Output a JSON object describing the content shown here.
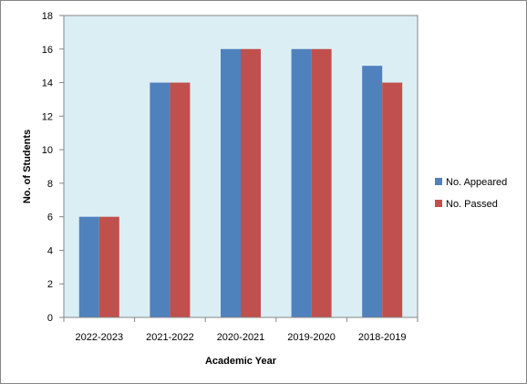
{
  "chart_data": {
    "type": "bar",
    "categories": [
      "2022-2023",
      "2021-2022",
      "2020-2021",
      "2019-2020",
      "2018-2019"
    ],
    "series": [
      {
        "name": "No. Appeared",
        "values": [
          6,
          14,
          16,
          16,
          15
        ],
        "color": "#4f81bd"
      },
      {
        "name": "No. Passed",
        "values": [
          6,
          14,
          16,
          16,
          14
        ],
        "color": "#c0504d"
      }
    ],
    "xlabel": "Academic Year",
    "ylabel": "No. of Students",
    "ylim": [
      0,
      18
    ],
    "yticks": [
      0,
      2,
      4,
      6,
      8,
      10,
      12,
      14,
      16,
      18
    ],
    "grid": false,
    "legend": "right",
    "plot_background": "#dbeef4"
  }
}
